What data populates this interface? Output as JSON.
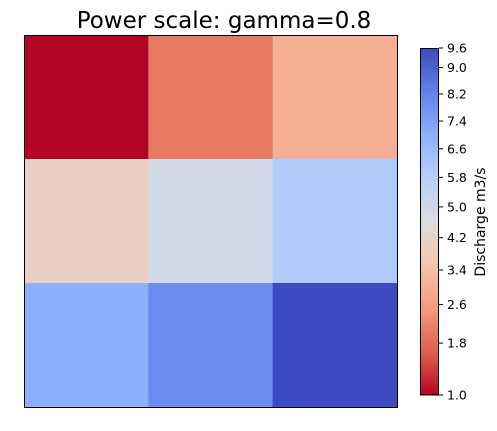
{
  "chart_data": {
    "type": "heatmap",
    "title": "Power scale: gamma=0.8",
    "xlabel": "",
    "ylabel": "",
    "rows": 3,
    "cols": 3,
    "values": [
      [
        1.0,
        2.0,
        3.0
      ],
      [
        4.0,
        5.0,
        6.0
      ],
      [
        7.0,
        8.0,
        9.6
      ]
    ],
    "colormap": "coolwarm_r",
    "norm": {
      "type": "power",
      "gamma": 0.8,
      "vmin": 1.0,
      "vmax": 9.6
    },
    "colorbar": {
      "label": "Discharge m3/s",
      "ticks": [
        1.0,
        1.8,
        2.6,
        3.4,
        4.2,
        5.0,
        5.8,
        6.6,
        7.4,
        8.2,
        9.0,
        9.6
      ],
      "tick_labels": [
        "1.0",
        "1.8",
        "2.6",
        "3.4",
        "4.2",
        "5.0",
        "5.8",
        "6.6",
        "7.4",
        "8.2",
        "9.0",
        "9.6"
      ]
    }
  }
}
